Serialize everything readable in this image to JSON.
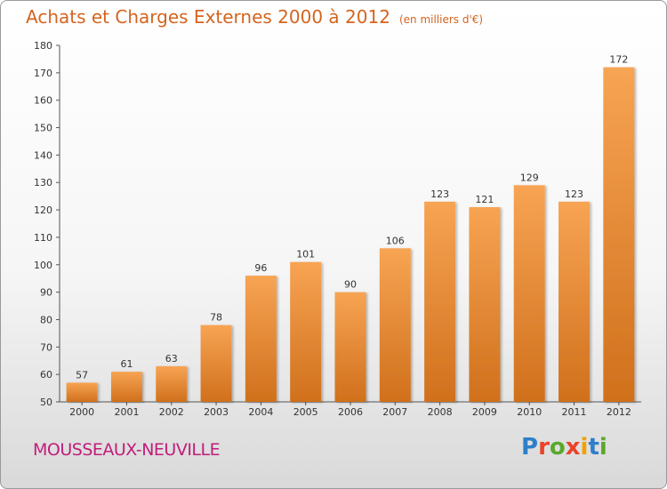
{
  "header": {
    "title": "Achats et Charges Externes 2000 à 2012",
    "unit": "(en milliers d'€)"
  },
  "footer": {
    "commune": "MOUSSEAUX-NEUVILLE",
    "brand": "Proxiti",
    "brand_colors": [
      "#2f7fc8",
      "#e8442a",
      "#5aa82c",
      "#e8442a",
      "#f2a000",
      "#2f7fc8",
      "#5aa82c"
    ]
  },
  "colors": {
    "bar_light": "#f7a453",
    "bar_dark": "#d0701c",
    "title": "#d4641f",
    "commune": "#c01d7b"
  },
  "chart_data": {
    "type": "bar",
    "title": "Achats et Charges Externes 2000 à 2012",
    "categories": [
      "2000",
      "2001",
      "2002",
      "2003",
      "2004",
      "2005",
      "2006",
      "2007",
      "2008",
      "2009",
      "2010",
      "2011",
      "2012"
    ],
    "values": [
      57,
      61,
      63,
      78,
      96,
      101,
      90,
      106,
      123,
      121,
      129,
      123,
      172
    ],
    "ylim": [
      50,
      180
    ],
    "yticks": [
      50,
      60,
      70,
      80,
      90,
      100,
      110,
      120,
      130,
      140,
      150,
      160,
      170,
      180
    ],
    "grid": false,
    "data_labels": true
  }
}
